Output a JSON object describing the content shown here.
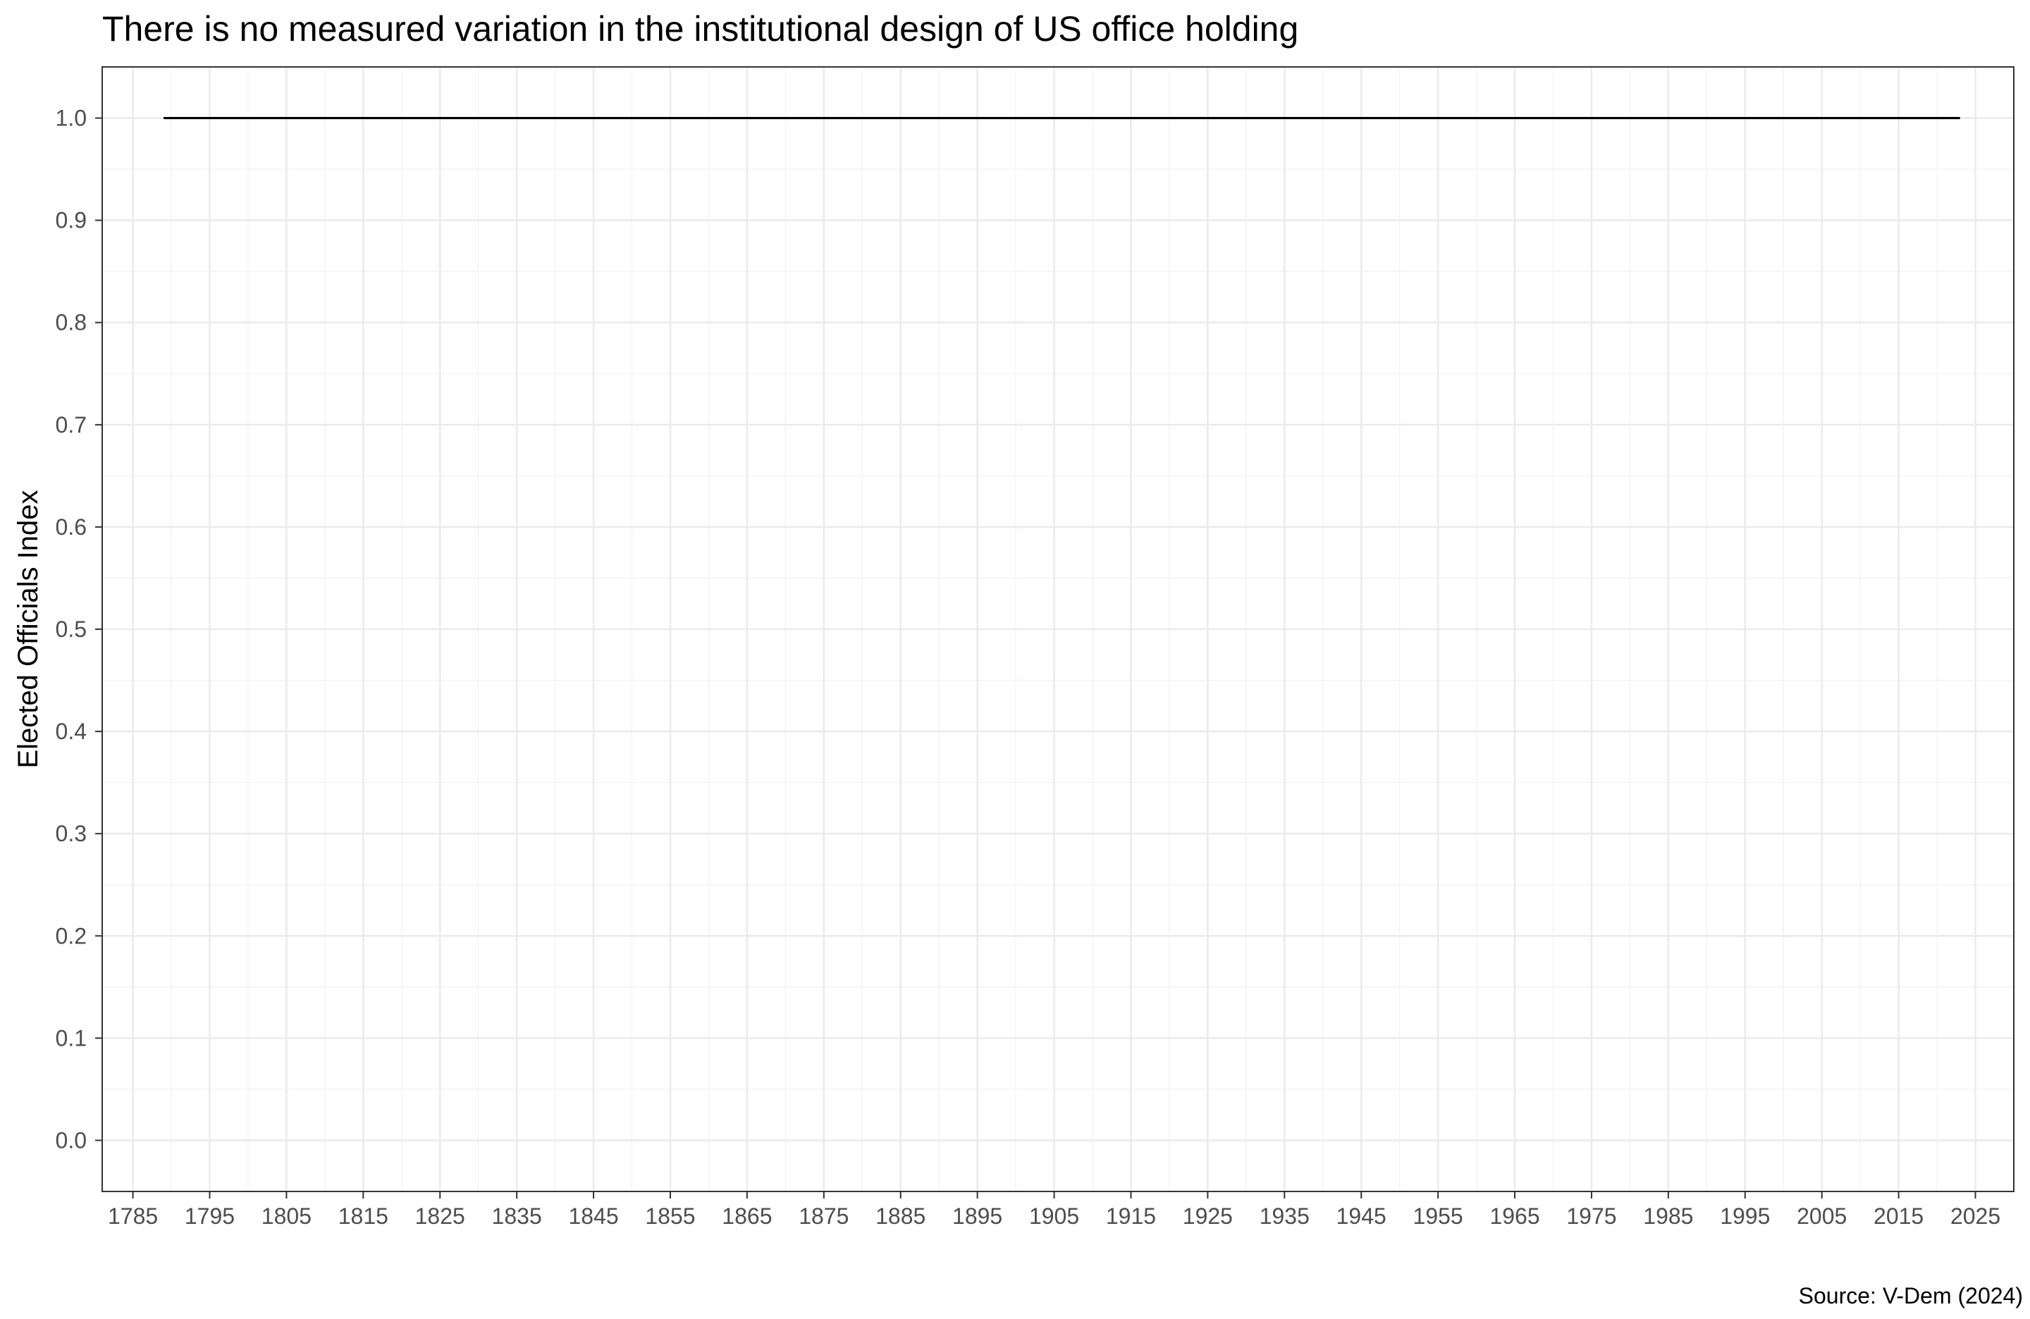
{
  "chart_data": {
    "type": "line",
    "title": "There is no measured variation in the institutional design of US office holding",
    "xlabel": "",
    "ylabel": "Elected Officials Index",
    "caption": "Source: V-Dem (2024)",
    "xlim": [
      1781,
      2030
    ],
    "ylim": [
      -0.05,
      1.05
    ],
    "x_ticks": [
      1785,
      1795,
      1805,
      1815,
      1825,
      1835,
      1845,
      1855,
      1865,
      1875,
      1885,
      1895,
      1905,
      1915,
      1925,
      1935,
      1945,
      1955,
      1965,
      1975,
      1985,
      1995,
      2005,
      2015,
      2025
    ],
    "y_ticks": [
      "0.0",
      "0.1",
      "0.2",
      "0.3",
      "0.4",
      "0.5",
      "0.6",
      "0.7",
      "0.8",
      "0.9",
      "1.0"
    ],
    "grid": true,
    "series": [
      {
        "x": [
          1789,
          2023
        ],
        "y": [
          1.0,
          1.0
        ],
        "color": "#000000"
      }
    ]
  }
}
